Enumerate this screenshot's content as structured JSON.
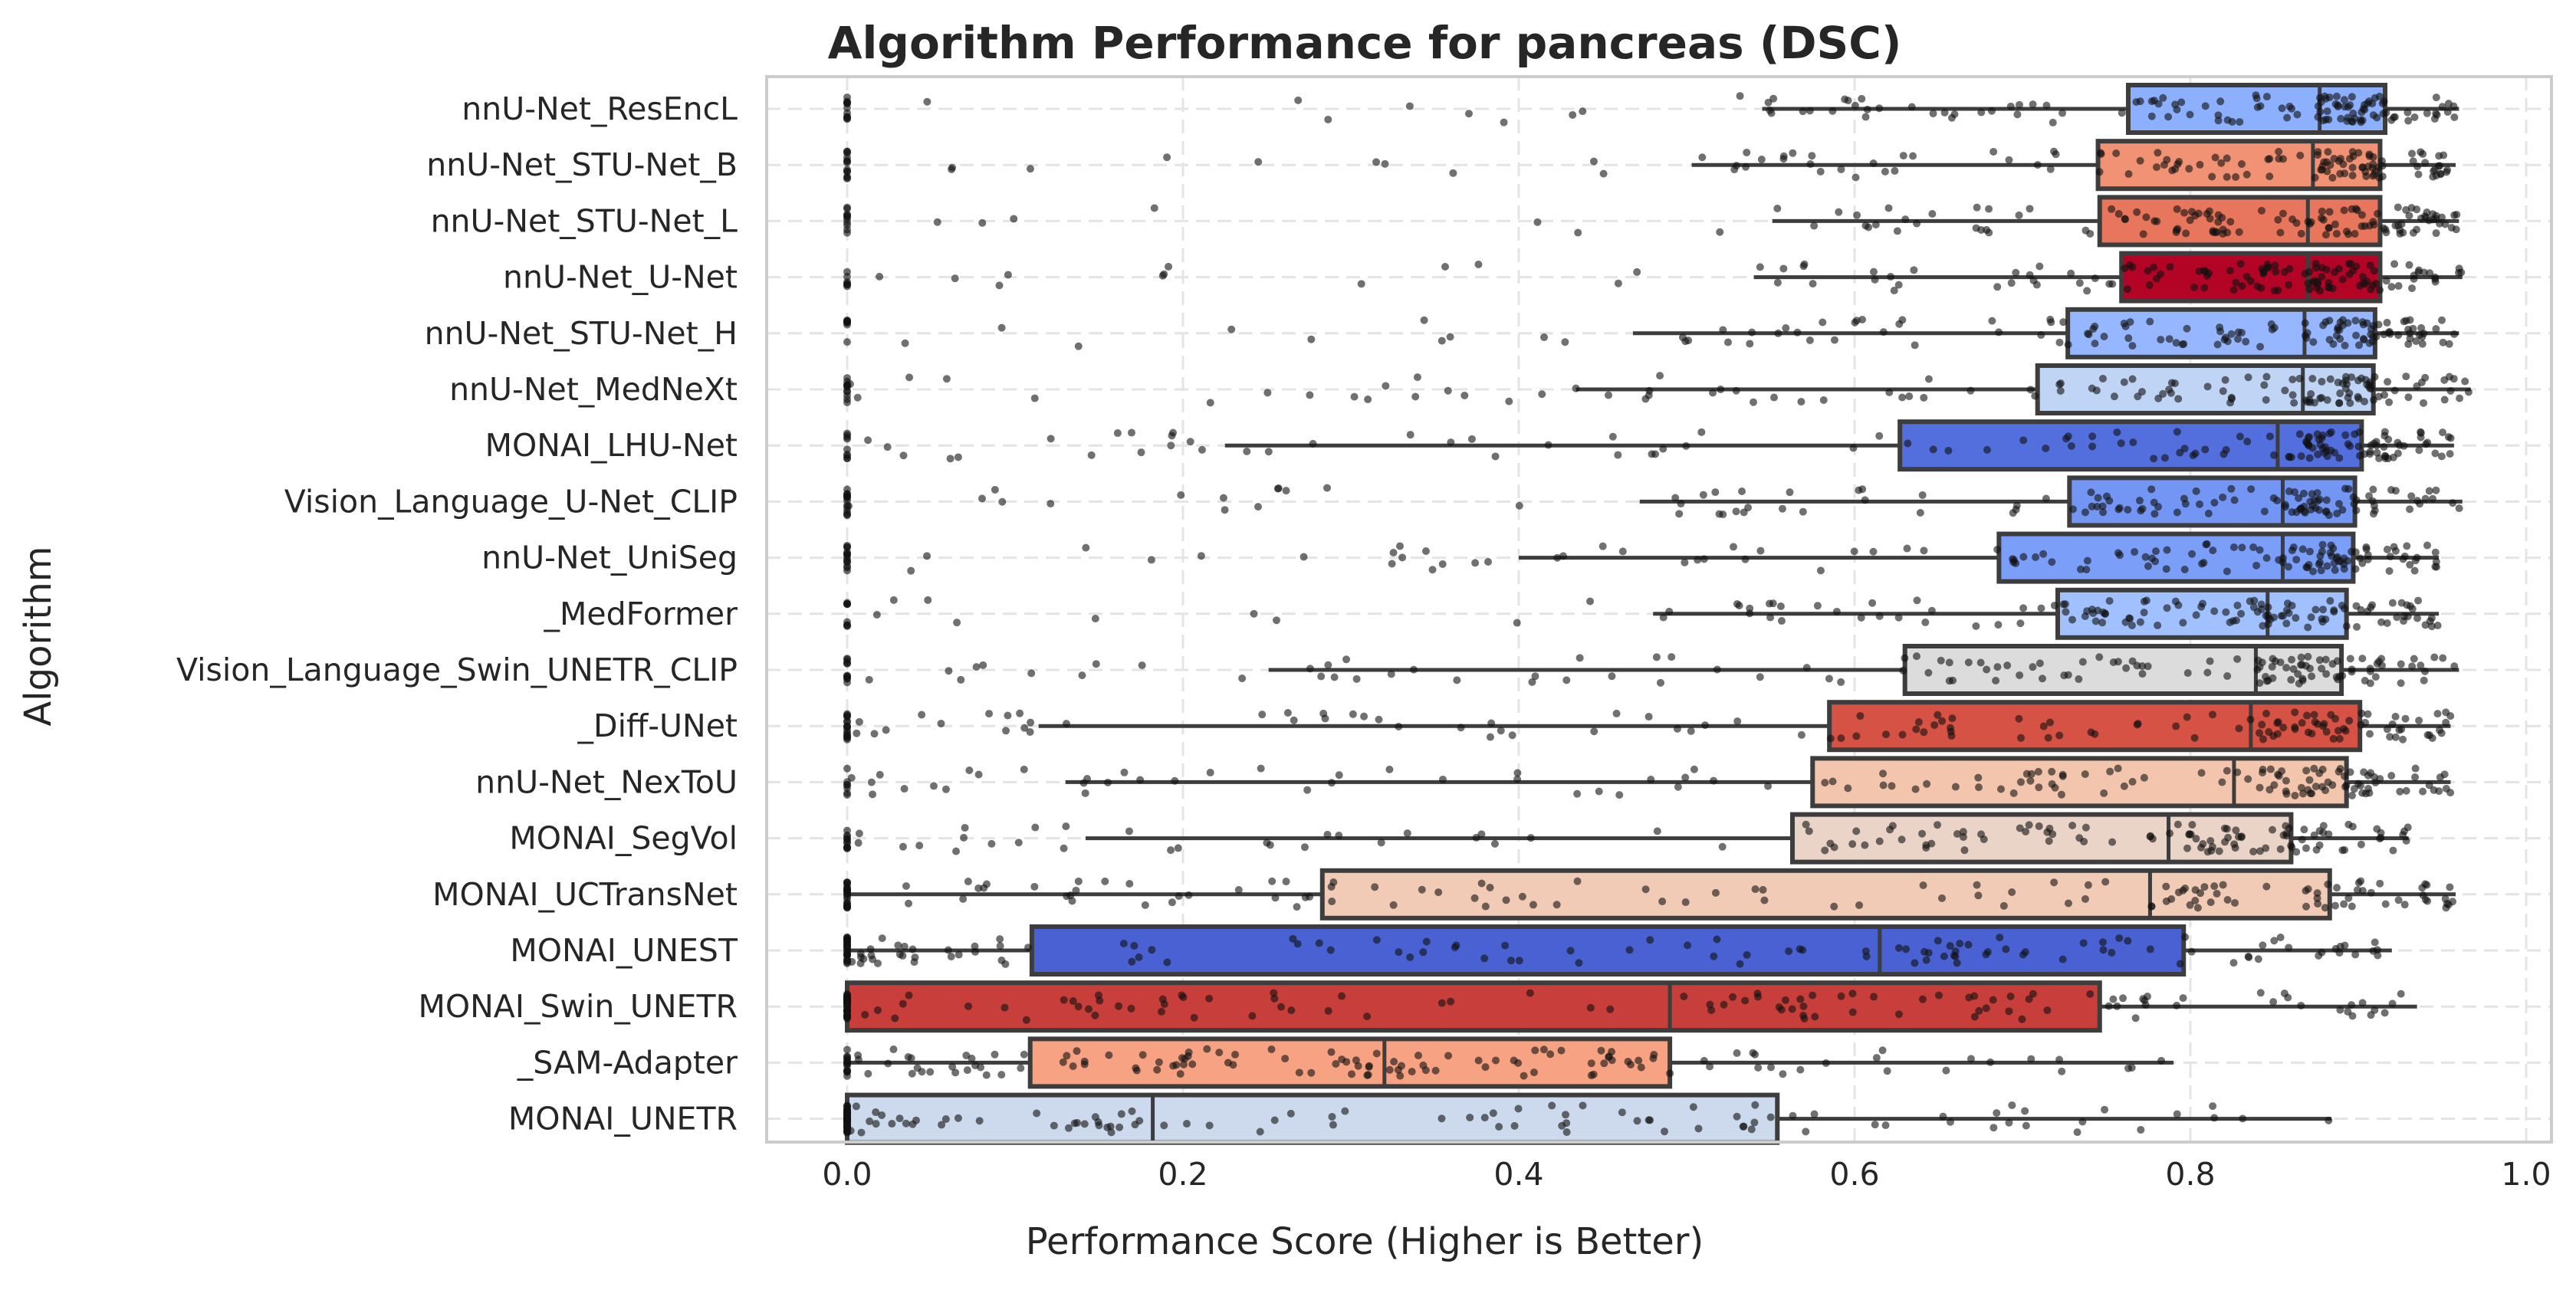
{
  "chart_data": {
    "type": "box",
    "title": "Algorithm Performance for pancreas (DSC)",
    "xlabel": "Performance Score (Higher is Better)",
    "ylabel": "Algorithm",
    "xlim": [
      -0.05,
      1.02
    ],
    "xticks": [
      "0.0",
      "0.2",
      "0.4",
      "0.6",
      "0.8",
      "1.0"
    ],
    "xtick_values": [
      0.0,
      0.2,
      0.4,
      0.6,
      0.8,
      1.0
    ],
    "grid": true,
    "overlay": "jittered strip points",
    "series": [
      {
        "name": "nnU-Net_ResEncL",
        "color": "#8db0fe",
        "q1": 0.763,
        "median": 0.877,
        "q3": 0.916,
        "whisker_low": 0.545,
        "whisker_high": 0.96
      },
      {
        "name": "nnU-Net_STU-Net_B",
        "color": "#f29274",
        "q1": 0.745,
        "median": 0.873,
        "q3": 0.913,
        "whisker_low": 0.503,
        "whisker_high": 0.958
      },
      {
        "name": "nnU-Net_STU-Net_L",
        "color": "#e8765c",
        "q1": 0.746,
        "median": 0.87,
        "q3": 0.913,
        "whisker_low": 0.551,
        "whisker_high": 0.96
      },
      {
        "name": "nnU-Net_U-Net",
        "color": "#b40426",
        "q1": 0.759,
        "median": 0.87,
        "q3": 0.913,
        "whisker_low": 0.54,
        "whisker_high": 0.962
      },
      {
        "name": "nnU-Net_STU-Net_H",
        "color": "#96b7ff",
        "q1": 0.727,
        "median": 0.868,
        "q3": 0.91,
        "whisker_low": 0.468,
        "whisker_high": 0.96
      },
      {
        "name": "nnU-Net_MedNeXt",
        "color": "#c0d4f5",
        "q1": 0.709,
        "median": 0.867,
        "q3": 0.909,
        "whisker_low": 0.434,
        "whisker_high": 0.967
      },
      {
        "name": "MONAI_LHU-Net",
        "color": "#536edd",
        "q1": 0.627,
        "median": 0.852,
        "q3": 0.902,
        "whisker_low": 0.225,
        "whisker_high": 0.957
      },
      {
        "name": "Vision_Language_U-Net_CLIP",
        "color": "#7396f5",
        "q1": 0.728,
        "median": 0.855,
        "q3": 0.898,
        "whisker_low": 0.472,
        "whisker_high": 0.962
      },
      {
        "name": "nnU-Net_UniSeg",
        "color": "#7b9ff9",
        "q1": 0.686,
        "median": 0.855,
        "q3": 0.897,
        "whisker_low": 0.4,
        "whisker_high": 0.948
      },
      {
        "name": "_MedFormer",
        "color": "#a1c0ff",
        "q1": 0.721,
        "median": 0.846,
        "q3": 0.893,
        "whisker_low": 0.48,
        "whisker_high": 0.948
      },
      {
        "name": "Vision_Language_Swin_UNETR_CLIP",
        "color": "#dddcdc",
        "q1": 0.63,
        "median": 0.839,
        "q3": 0.89,
        "whisker_low": 0.251,
        "whisker_high": 0.96
      },
      {
        "name": "_Diff-UNet",
        "color": "#d65244",
        "q1": 0.585,
        "median": 0.836,
        "q3": 0.901,
        "whisker_low": 0.114,
        "whisker_high": 0.955
      },
      {
        "name": "nnU-Net_NexToU",
        "color": "#f4c5ad",
        "q1": 0.575,
        "median": 0.826,
        "q3": 0.893,
        "whisker_low": 0.13,
        "whisker_high": 0.955
      },
      {
        "name": "MONAI_SegVol",
        "color": "#ead4c8",
        "q1": 0.563,
        "median": 0.787,
        "q3": 0.86,
        "whisker_low": 0.142,
        "whisker_high": 0.93
      },
      {
        "name": "MONAI_UCTransNet",
        "color": "#f2cbb7",
        "q1": 0.283,
        "median": 0.776,
        "q3": 0.883,
        "whisker_low": 0.0,
        "whisker_high": 0.958
      },
      {
        "name": "MONAI_UNEST",
        "color": "#4961d2",
        "q1": 0.11,
        "median": 0.615,
        "q3": 0.796,
        "whisker_low": 0.0,
        "whisker_high": 0.92
      },
      {
        "name": "MONAI_Swin_UNETR",
        "color": "#c83e3a",
        "q1": 0.0,
        "median": 0.49,
        "q3": 0.746,
        "whisker_low": 0.0,
        "whisker_high": 0.935
      },
      {
        "name": "_SAM-Adapter",
        "color": "#f6a283",
        "q1": 0.109,
        "median": 0.32,
        "q3": 0.49,
        "whisker_low": 0.0,
        "whisker_high": 0.79
      },
      {
        "name": "MONAI_UNETR",
        "color": "#cdd9ec",
        "q1": 0.0,
        "median": 0.182,
        "q3": 0.554,
        "whisker_low": 0.0,
        "whisker_high": 0.884
      }
    ]
  }
}
